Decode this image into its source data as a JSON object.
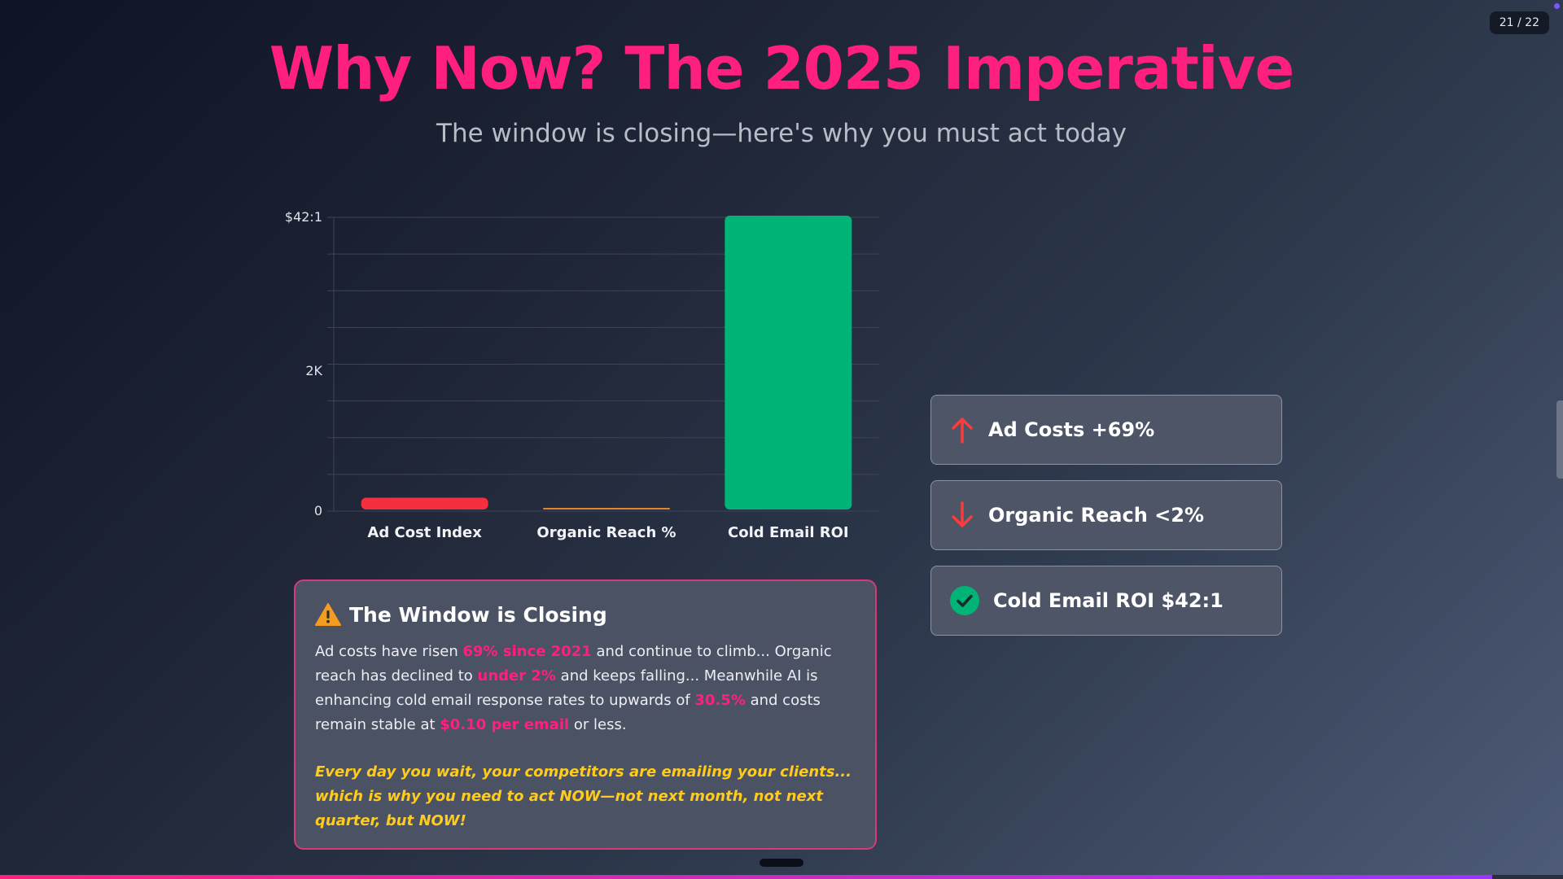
{
  "page_counter": "21 / 22",
  "progress": {
    "current": 21,
    "total": 22,
    "fraction": 0.9545
  },
  "header": {
    "title": "Why Now? The 2025 Imperative",
    "subtitle": "The window is closing—here's why you must act today"
  },
  "colors": {
    "accent": "#ff1f7d",
    "warning_text": "#ffcc1d",
    "bar_red": "#f4303f",
    "bar_orange": "#e0862f",
    "bar_green": "#00b377",
    "up_arrow": "#ff3b3b",
    "down_arrow": "#ff3b3b",
    "check": "#00b377"
  },
  "chart_data": {
    "type": "bar",
    "categories": [
      "Ad Cost Index",
      "Organic Reach %",
      "Cold Email ROI"
    ],
    "values": [
      169,
      2,
      4200
    ],
    "ytick_labels": [
      "0",
      "2K",
      "$42:1"
    ],
    "ytick_values": [
      0,
      2000,
      4200
    ],
    "ylim": [
      0,
      4200
    ],
    "grid": true,
    "title": "",
    "xlabel": "",
    "ylabel": ""
  },
  "warning": {
    "icon": "warning-triangle-icon",
    "title": "The Window is Closing",
    "p1_a": "Ad costs have risen ",
    "p1_h1": "69% since 2021",
    "p1_b": " and continue to climb... Organic reach has declined to ",
    "p1_h2": "under 2%",
    "p1_c": " and keeps falling... Meanwhile AI is enhancing cold email response rates to upwards of ",
    "p1_h3": "30.5%",
    "p1_d": " and costs remain stable at ",
    "p1_h4": "$0.10 per email",
    "p1_e": " or less.",
    "cta": "Every day you wait, your competitors are emailing your clients... which is why you need to act NOW—not next month, not next quarter, but NOW!"
  },
  "stats": [
    {
      "icon": "arrow-up-icon",
      "label": "Ad Costs +69%"
    },
    {
      "icon": "arrow-down-icon",
      "label": "Organic Reach <2%"
    },
    {
      "icon": "check-circle-icon",
      "label": "Cold Email ROI $42:1"
    }
  ]
}
